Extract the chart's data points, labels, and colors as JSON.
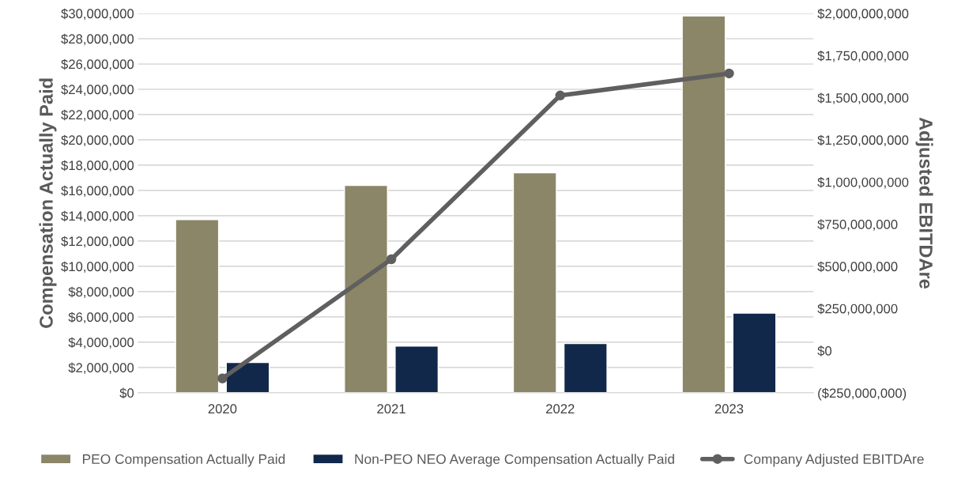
{
  "chart_data": {
    "type": "bar",
    "categories": [
      "2020",
      "2021",
      "2022",
      "2023"
    ],
    "ylabel": "Compensation Actually Paid",
    "y2label": "Adjusted EBITDAre",
    "series": [
      {
        "name": "PEO Compensation Actually Paid",
        "color": "#8b8667",
        "values": [
          13700000,
          16400000,
          17400000,
          29800000
        ]
      },
      {
        "name": "Non-PEO NEO Average Compensation Actually Paid",
        "color": "#12284a",
        "values": [
          2400000,
          3700000,
          3900000,
          6300000
        ]
      },
      {
        "name": "Company Adjusted EBITDAre",
        "type": "line",
        "axis": "y2",
        "color": "#5f5f5f",
        "marker": "circle",
        "values": [
          -165000000,
          542000000,
          1513000000,
          1644000000
        ]
      }
    ],
    "ylim": [
      0,
      30000000
    ],
    "yticks": [
      {
        "value": 0,
        "label": "$0"
      },
      {
        "value": 2000000,
        "label": "$2,000,000"
      },
      {
        "value": 4000000,
        "label": "$4,000,000"
      },
      {
        "value": 6000000,
        "label": "$6,000,000"
      },
      {
        "value": 8000000,
        "label": "$8,000,000"
      },
      {
        "value": 10000000,
        "label": "$10,000,000"
      },
      {
        "value": 12000000,
        "label": "$12,000,000"
      },
      {
        "value": 14000000,
        "label": "$14,000,000"
      },
      {
        "value": 16000000,
        "label": "$16,000,000"
      },
      {
        "value": 18000000,
        "label": "$18,000,000"
      },
      {
        "value": 20000000,
        "label": "$20,000,000"
      },
      {
        "value": 22000000,
        "label": "$22,000,000"
      },
      {
        "value": 24000000,
        "label": "$24,000,000"
      },
      {
        "value": 26000000,
        "label": "$26,000,000"
      },
      {
        "value": 28000000,
        "label": "$28,000,000"
      },
      {
        "value": 30000000,
        "label": "$30,000,000"
      }
    ],
    "y2lim": [
      -250000000,
      2000000000
    ],
    "y2ticks": [
      {
        "value": -250000000,
        "label": "($250,000,000)"
      },
      {
        "value": 0,
        "label": "$0"
      },
      {
        "value": 250000000,
        "label": "$250,000,000"
      },
      {
        "value": 500000000,
        "label": "$500,000,000"
      },
      {
        "value": 750000000,
        "label": "$750,000,000"
      },
      {
        "value": 1000000000,
        "label": "$1,000,000,000"
      },
      {
        "value": 1250000000,
        "label": "$1,250,000,000"
      },
      {
        "value": 1500000000,
        "label": "$1,500,000,000"
      },
      {
        "value": 1750000000,
        "label": "$1,750,000,000"
      },
      {
        "value": 2000000000,
        "label": "$2,000,000,000"
      }
    ],
    "grid": "y",
    "legend": "bottom"
  }
}
